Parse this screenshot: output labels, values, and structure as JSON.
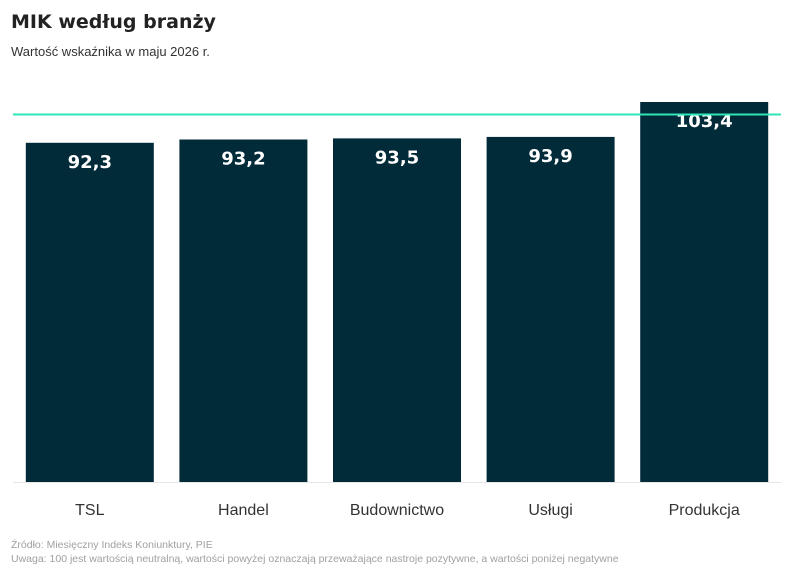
{
  "title": "MIK według branży",
  "subtitle": "Wartość wskaźnika w maju 2026 r.",
  "source": "Źródło: Miesięczny Indeks Koniunktury, PIE",
  "note": "Uwaga: 100 jest wartością neutralną, wartości powyżej oznaczają przeważające nastroje pozytywne, a wartości poniżej negatywne",
  "colors": {
    "bar": "#022b3a",
    "reference_line": "#2ee6b6",
    "bar_label": "#ffffff",
    "axis_label": "#333333"
  },
  "chart_data": {
    "type": "bar",
    "categories": [
      "TSL",
      "Handel",
      "Budownictwo",
      "Usługi",
      "Produkcja"
    ],
    "values": [
      92.3,
      93.2,
      93.5,
      93.9,
      103.4
    ],
    "value_labels": [
      "92,3",
      "93,2",
      "93,5",
      "93,9",
      "103,4"
    ],
    "reference_value": 100,
    "ylim": [
      0,
      103.4
    ],
    "grid": false,
    "legend": "none",
    "xlabel": "",
    "ylabel": ""
  }
}
